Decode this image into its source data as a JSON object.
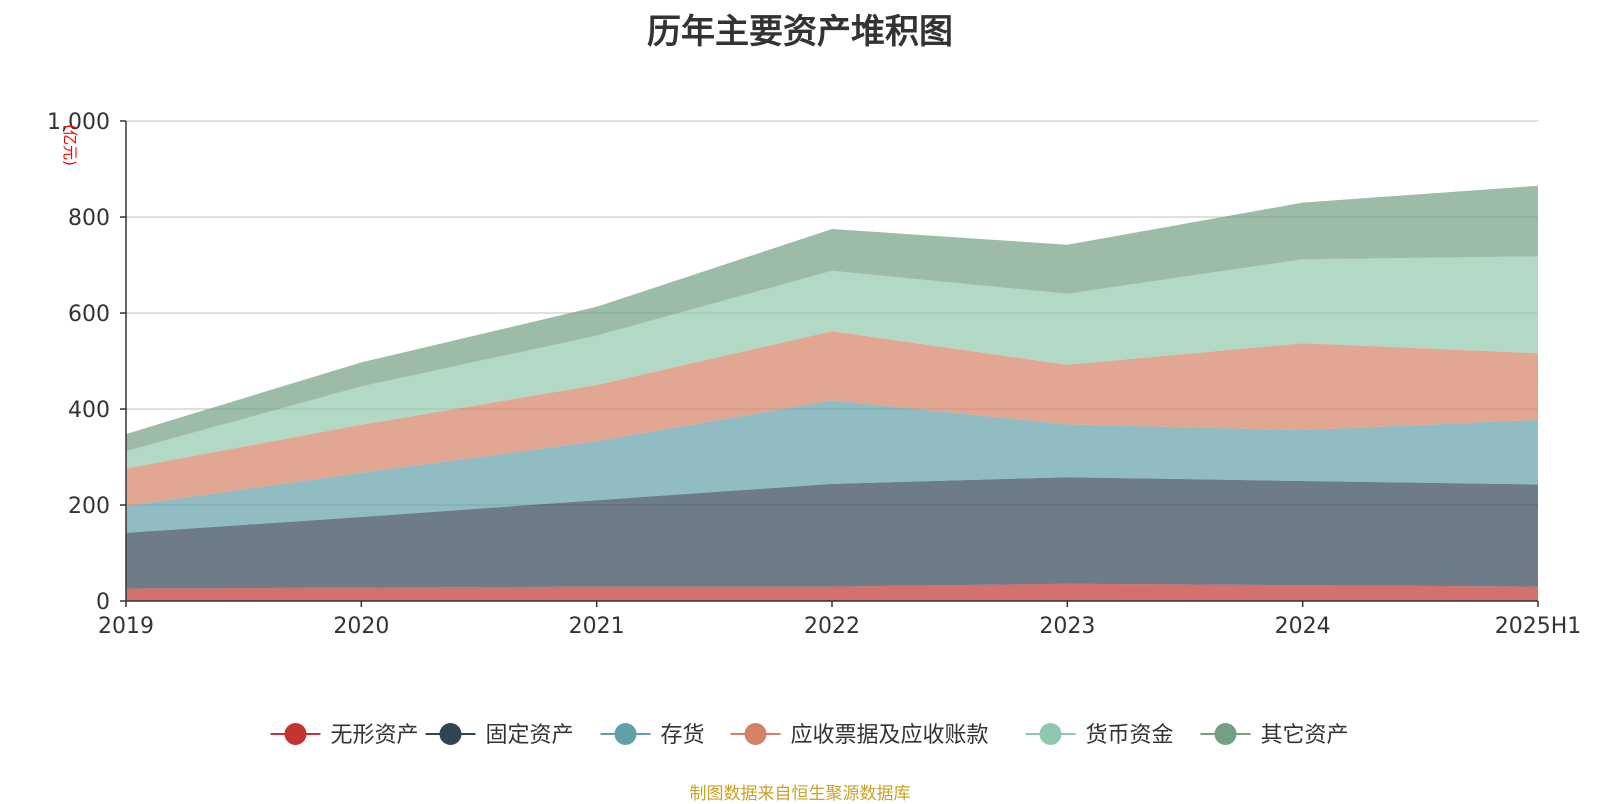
{
  "chart_data": {
    "type": "area",
    "stacked": true,
    "title": "历年主要资产堆积图",
    "ylabel": "(亿元)",
    "xlabel": "",
    "categories": [
      "2019",
      "2020",
      "2021",
      "2022",
      "2023",
      "2024",
      "2025H1"
    ],
    "ylim": [
      0,
      1000
    ],
    "yticks": [
      "0",
      "200",
      "400",
      "600",
      "800",
      "1,000"
    ],
    "grid": true,
    "legend_position": "bottom",
    "series": [
      {
        "name": "无形资产",
        "color": "#c23531",
        "values": [
          26,
          28,
          30,
          30,
          36,
          33,
          30
        ]
      },
      {
        "name": "固定资产",
        "color": "#2f4554",
        "values": [
          116,
          147,
          180,
          214,
          222,
          217,
          213
        ]
      },
      {
        "name": "存货",
        "color": "#61a0a8",
        "values": [
          56,
          92,
          123,
          174,
          110,
          106,
          134
        ]
      },
      {
        "name": "应收票据及应收账款",
        "color": "#d48265",
        "values": [
          78,
          100,
          117,
          144,
          124,
          181,
          139
        ]
      },
      {
        "name": "货币资金",
        "color": "#91c7ae",
        "values": [
          36,
          80,
          103,
          126,
          148,
          175,
          202
        ]
      },
      {
        "name": "其它资产",
        "color": "#749f83",
        "values": [
          36,
          50,
          60,
          87,
          102,
          118,
          147
        ]
      }
    ]
  },
  "footer": {
    "source": "制图数据来自恒生聚源数据库"
  }
}
